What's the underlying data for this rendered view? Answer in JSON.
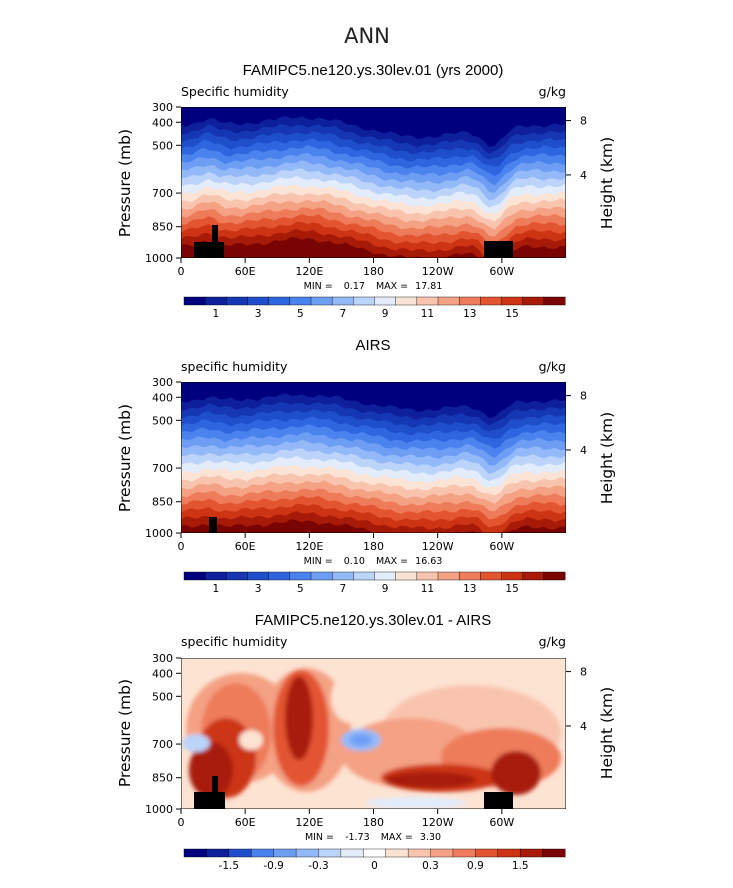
{
  "figure_title": "ANN",
  "colors": {
    "humidity": [
      "#00007f",
      "#0d1f9a",
      "#1537b3",
      "#1e4ec9",
      "#2e66df",
      "#4a82ee",
      "#6e9ef4",
      "#94b9f8",
      "#bcd3fa",
      "#e2ecfb",
      "#fbe3d6",
      "#f9c4ae",
      "#f4a184",
      "#ee7c5a",
      "#e35430",
      "#cc3413",
      "#a81a08",
      "#7a0403"
    ],
    "diff": [
      "#00007f",
      "#0d1f9a",
      "#1e4ec9",
      "#4a82ee",
      "#6e9ef4",
      "#94b9f8",
      "#bcd3fa",
      "#e2ecfb",
      "#ffffff",
      "#fde3d2",
      "#f9c4ae",
      "#f4a184",
      "#ee7c5a",
      "#e35430",
      "#cc3413",
      "#a81a08",
      "#7a0403"
    ],
    "terrain": "#000000"
  },
  "chart_data": [
    {
      "type": "heatmap",
      "title": "FAMIPC5.ne120.ys.30lev.01 (yrs 2000)",
      "left_label": "Specific humidity",
      "units": "g/kg",
      "ylabel": "Pressure (mb)",
      "ylabel_right": "Height (km)",
      "x_ticks": [
        "0",
        "60E",
        "120E",
        "180",
        "120W",
        "60W"
      ],
      "x_range": [
        0,
        360
      ],
      "y_ticks": [
        "300",
        "400",
        "500",
        "700",
        "850",
        "1000"
      ],
      "y_range": [
        300,
        1000
      ],
      "height_ticks": [
        "8",
        "4"
      ],
      "stats": {
        "min_label": "MIN =",
        "min": "0.17",
        "max_label": "MAX =",
        "max": "17.81"
      },
      "colorbar": {
        "labels": [
          "1",
          "3",
          "5",
          "7",
          "9",
          "11",
          "13",
          "15"
        ],
        "palette": "humidity"
      }
    },
    {
      "type": "heatmap",
      "title": "AIRS",
      "left_label": "specific humidity",
      "units": "g/kg",
      "ylabel": "Pressure (mb)",
      "ylabel_right": "Height (km)",
      "x_ticks": [
        "0",
        "60E",
        "120E",
        "180",
        "120W",
        "60W"
      ],
      "x_range": [
        0,
        360
      ],
      "y_ticks": [
        "300",
        "400",
        "500",
        "700",
        "850",
        "1000"
      ],
      "y_range": [
        300,
        1000
      ],
      "height_ticks": [
        "8",
        "4"
      ],
      "stats": {
        "min_label": "MIN =",
        "min": "0.10",
        "max_label": "MAX =",
        "max": "16.63"
      },
      "colorbar": {
        "labels": [
          "1",
          "3",
          "5",
          "7",
          "9",
          "11",
          "13",
          "15"
        ],
        "palette": "humidity"
      }
    },
    {
      "type": "heatmap",
      "title": "FAMIPC5.ne120.ys.30lev.01 - AIRS",
      "left_label": "specific humidity",
      "units": "g/kg",
      "ylabel": "Pressure (mb)",
      "ylabel_right": "Height (km)",
      "x_ticks": [
        "0",
        "60E",
        "120E",
        "180",
        "120W",
        "60W"
      ],
      "x_range": [
        0,
        360
      ],
      "y_ticks": [
        "300",
        "400",
        "500",
        "700",
        "850",
        "1000"
      ],
      "y_range": [
        300,
        1000
      ],
      "height_ticks": [
        "8",
        "4"
      ],
      "stats": {
        "min_label": "MIN =",
        "min": "-1.73",
        "max_label": "MAX =",
        "max": "3.30"
      },
      "colorbar": {
        "labels": [
          "-1.5",
          "-0.9",
          "-0.3",
          "0",
          "0.3",
          "0.9",
          "1.5"
        ],
        "palette": "diff"
      }
    }
  ]
}
